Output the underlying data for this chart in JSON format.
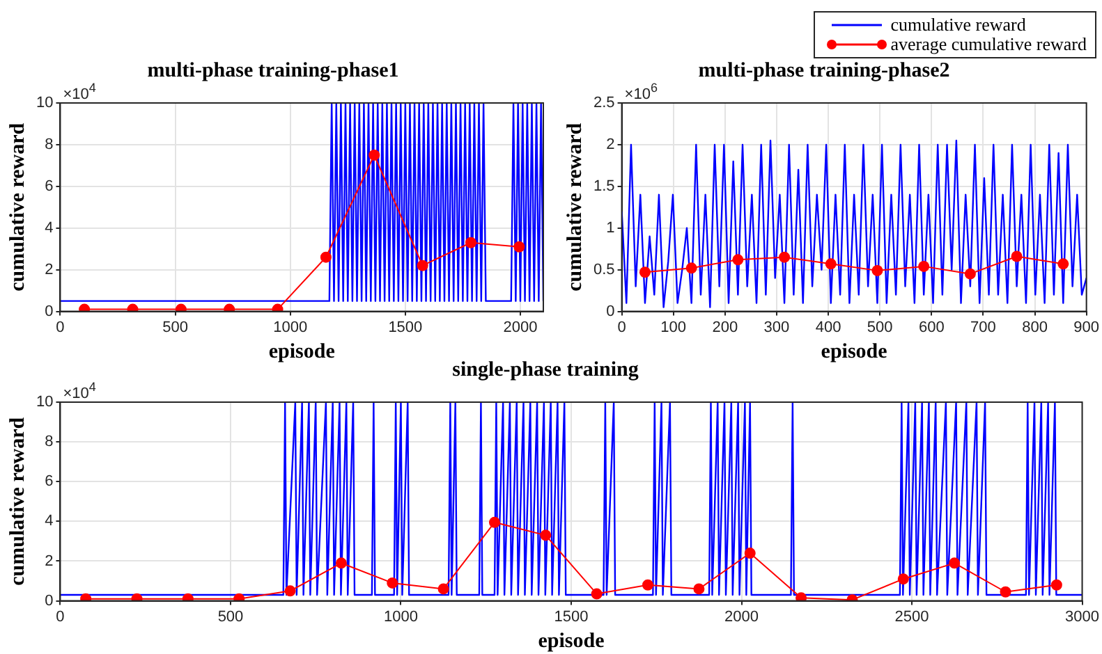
{
  "chart_data": [
    {
      "type": "line",
      "title": "multi-phase training-phase1",
      "xlabel": "episode",
      "ylabel": "cumulative reward",
      "annotations": [
        "×10$^{4}$"
      ],
      "xlim": [
        0,
        2100
      ],
      "xticks": [
        0,
        500,
        1000,
        1500,
        2000
      ],
      "ylim": [
        0,
        10
      ],
      "yticks": [
        0,
        2,
        4,
        6,
        8,
        10
      ],
      "grid": true,
      "legend": false,
      "series": [
        {
          "color": "#0000ff",
          "marker": "none",
          "x": [
            0,
            1170,
            1180,
            1190,
            1200,
            1210,
            1220,
            1230,
            1240,
            1250,
            1260,
            1270,
            1280,
            1290,
            1300,
            1310,
            1320,
            1330,
            1340,
            1350,
            1360,
            1370,
            1380,
            1390,
            1400,
            1410,
            1420,
            1430,
            1440,
            1450,
            1460,
            1470,
            1480,
            1490,
            1500,
            1510,
            1520,
            1530,
            1540,
            1550,
            1560,
            1570,
            1580,
            1590,
            1600,
            1610,
            1620,
            1630,
            1640,
            1650,
            1660,
            1670,
            1680,
            1690,
            1700,
            1710,
            1720,
            1730,
            1740,
            1750,
            1760,
            1770,
            1780,
            1790,
            1800,
            1810,
            1820,
            1830,
            1840,
            1850,
            1960,
            1970,
            1980,
            1990,
            2000,
            2010,
            2020,
            2030,
            2040,
            2050,
            2060,
            2070,
            2080,
            2090,
            2100
          ],
          "values": [
            0.5,
            0.5,
            10,
            0.5,
            10,
            0.5,
            10,
            0.5,
            10,
            0.5,
            10,
            0.5,
            10,
            0.5,
            10,
            0.5,
            10,
            0.5,
            10,
            0.5,
            10,
            0.5,
            10,
            0.5,
            10,
            0.5,
            10,
            0.5,
            10,
            0.5,
            10,
            0.5,
            10,
            0.5,
            10,
            0.5,
            10,
            0.5,
            10,
            0.5,
            10,
            0.5,
            10,
            0.5,
            10,
            0.5,
            10,
            0.5,
            10,
            0.5,
            10,
            0.5,
            10,
            0.5,
            10,
            0.5,
            10,
            0.5,
            10,
            0.5,
            10,
            0.5,
            10,
            0.5,
            10,
            0.5,
            10,
            0.5,
            10,
            0.5,
            0.5,
            10,
            0.5,
            10,
            0.5,
            10,
            0.5,
            10,
            0.5,
            10,
            0.5,
            10,
            0.5,
            10,
            0.5
          ]
        },
        {
          "color": "#ff0000",
          "marker": "circle",
          "x": [
            105,
            315,
            525,
            735,
            945,
            1155,
            1365,
            1575,
            1785,
            1995
          ],
          "values": [
            0.1,
            0.1,
            0.1,
            0.1,
            0.1,
            2.6,
            7.5,
            2.2,
            3.3,
            3.1
          ]
        }
      ]
    },
    {
      "type": "line",
      "title": "multi-phase training-phase2",
      "xlabel": "episode",
      "ylabel": "cumulative reward",
      "annotations": [
        "×10$^{6}$"
      ],
      "xlim": [
        0,
        900
      ],
      "xticks": [
        0,
        100,
        200,
        300,
        400,
        500,
        600,
        700,
        800,
        900
      ],
      "ylim": [
        0,
        2.5
      ],
      "yticks": [
        0,
        0.5,
        1,
        1.5,
        2,
        2.5
      ],
      "grid": true,
      "legend": "top right",
      "series": [
        {
          "name": "cumulative reward",
          "color": "#0000ff",
          "marker": "none",
          "x": [
            0,
            9,
            18,
            27,
            36,
            45,
            54,
            63,
            72,
            81,
            90,
            99,
            108,
            117,
            126,
            135,
            144,
            153,
            162,
            171,
            180,
            189,
            198,
            207,
            216,
            225,
            234,
            243,
            252,
            261,
            270,
            279,
            288,
            297,
            306,
            315,
            324,
            333,
            342,
            351,
            360,
            369,
            378,
            387,
            396,
            405,
            414,
            423,
            432,
            441,
            450,
            459,
            468,
            477,
            486,
            495,
            504,
            513,
            522,
            531,
            540,
            549,
            558,
            567,
            576,
            585,
            594,
            603,
            612,
            621,
            630,
            639,
            648,
            657,
            666,
            675,
            684,
            693,
            702,
            711,
            720,
            729,
            738,
            747,
            756,
            765,
            774,
            783,
            792,
            801,
            810,
            819,
            828,
            837,
            846,
            855,
            864,
            873,
            882,
            891,
            900
          ],
          "values": [
            1.2,
            0.1,
            2.0,
            0.3,
            1.4,
            0.1,
            0.9,
            0.2,
            1.4,
            0.05,
            0.6,
            1.4,
            0.1,
            0.5,
            1.0,
            0.1,
            2.0,
            0.2,
            1.4,
            0.05,
            2.0,
            0.3,
            2.0,
            0.1,
            1.8,
            0.2,
            2.0,
            0.3,
            1.4,
            0.1,
            2.0,
            0.2,
            2.05,
            0.4,
            1.4,
            0.1,
            2.0,
            0.2,
            1.7,
            0.1,
            2.0,
            0.3,
            1.4,
            0.5,
            2.0,
            0.1,
            1.4,
            0.2,
            2.0,
            0.1,
            1.4,
            0.2,
            2.0,
            0.3,
            1.4,
            0.1,
            2.0,
            0.1,
            1.4,
            0.2,
            2.0,
            0.3,
            1.4,
            0.1,
            2.0,
            0.2,
            1.4,
            0.1,
            2.0,
            0.2,
            2.0,
            0.5,
            2.05,
            0.1,
            1.4,
            0.3,
            2.0,
            0.1,
            1.6,
            0.2,
            2.0,
            0.2,
            1.4,
            0.1,
            2.0,
            0.3,
            1.4,
            0.1,
            2.0,
            0.2,
            1.4,
            0.1,
            2.0,
            0.2,
            1.9,
            0.1,
            2.0,
            0.3,
            1.4,
            0.2,
            0.4
          ]
        },
        {
          "name": "average cumulative reward",
          "color": "#ff0000",
          "marker": "circle",
          "x": [
            45,
            135,
            225,
            315,
            405,
            495,
            585,
            675,
            765,
            855
          ],
          "values": [
            0.47,
            0.52,
            0.62,
            0.65,
            0.57,
            0.49,
            0.54,
            0.45,
            0.66,
            0.57
          ]
        }
      ]
    },
    {
      "type": "line",
      "title": "single-phase training",
      "xlabel": "episode",
      "ylabel": "cumulative reward",
      "annotations": [
        "×10$^{4}$"
      ],
      "xlim": [
        0,
        3000
      ],
      "xticks": [
        0,
        500,
        1000,
        1500,
        2000,
        2500,
        3000
      ],
      "ylim": [
        0,
        10
      ],
      "yticks": [
        0,
        2,
        4,
        6,
        8,
        10
      ],
      "grid": true,
      "legend": false,
      "series": [
        {
          "color": "#0000ff",
          "marker": "none",
          "x": [
            0,
            655,
            660,
            664,
            690,
            694,
            710,
            714,
            730,
            734,
            750,
            754,
            780,
            784,
            800,
            804,
            820,
            824,
            840,
            844,
            860,
            864,
            915,
            920,
            924,
            980,
            985,
            989,
            1000,
            1004,
            1020,
            1024,
            1140,
            1145,
            1149,
            1160,
            1164,
            1230,
            1235,
            1239,
            1275,
            1280,
            1284,
            1300,
            1304,
            1320,
            1324,
            1340,
            1344,
            1360,
            1364,
            1380,
            1384,
            1400,
            1404,
            1420,
            1424,
            1440,
            1444,
            1460,
            1464,
            1480,
            1484,
            1595,
            1600,
            1604,
            1625,
            1629,
            1740,
            1745,
            1749,
            1765,
            1769,
            1790,
            1794,
            1905,
            1910,
            1914,
            1930,
            1934,
            1950,
            1954,
            1970,
            1974,
            1990,
            1994,
            2010,
            2014,
            2025,
            2029,
            2145,
            2150,
            2154,
            2465,
            2470,
            2474,
            2490,
            2494,
            2510,
            2514,
            2530,
            2534,
            2550,
            2554,
            2570,
            2574,
            2600,
            2604,
            2630,
            2634,
            2660,
            2664,
            2690,
            2694,
            2715,
            2719,
            2835,
            2840,
            2844,
            2860,
            2864,
            2880,
            2884,
            2900,
            2904,
            2920,
            2924,
            3000
          ],
          "values": [
            0.3,
            0.3,
            10,
            0.3,
            10,
            0.3,
            10,
            0.3,
            10,
            0.3,
            10,
            0.3,
            10,
            0.3,
            10,
            0.3,
            10,
            0.3,
            10,
            0.3,
            10,
            0.3,
            0.3,
            10,
            0.3,
            0.3,
            10,
            0.3,
            10,
            0.3,
            10,
            0.3,
            0.3,
            10,
            0.3,
            10,
            0.3,
            0.3,
            10,
            0.3,
            0.3,
            10,
            0.3,
            10,
            0.3,
            10,
            0.3,
            10,
            0.3,
            10,
            0.3,
            10,
            0.3,
            10,
            0.3,
            10,
            0.3,
            10,
            0.3,
            10,
            0.3,
            10,
            0.3,
            0.3,
            10,
            0.3,
            10,
            0.3,
            0.3,
            10,
            0.3,
            10,
            0.3,
            10,
            0.3,
            0.3,
            10,
            0.3,
            10,
            0.3,
            10,
            0.3,
            10,
            0.3,
            10,
            0.3,
            10,
            0.3,
            10,
            0.3,
            0.3,
            10,
            0.3,
            0.3,
            10,
            0.3,
            10,
            0.3,
            10,
            0.3,
            10,
            0.3,
            10,
            0.3,
            10,
            0.3,
            10,
            0.3,
            10,
            0.3,
            10,
            0.3,
            10,
            0.3,
            10,
            0.3,
            0.3,
            10,
            0.3,
            10,
            0.3,
            10,
            0.3,
            10,
            0.3,
            10,
            0.3,
            0.3
          ]
        },
        {
          "color": "#ff0000",
          "marker": "circle",
          "x": [
            75,
            225,
            375,
            525,
            675,
            825,
            975,
            1125,
            1275,
            1425,
            1575,
            1725,
            1875,
            2025,
            2175,
            2325,
            2475,
            2625,
            2775,
            2925
          ],
          "values": [
            0.1,
            0.1,
            0.1,
            0.1,
            0.5,
            1.9,
            0.9,
            0.6,
            3.95,
            3.3,
            0.35,
            0.8,
            0.6,
            2.4,
            0.15,
            0.05,
            1.1,
            1.9,
            0.45,
            0.8
          ]
        }
      ]
    }
  ]
}
